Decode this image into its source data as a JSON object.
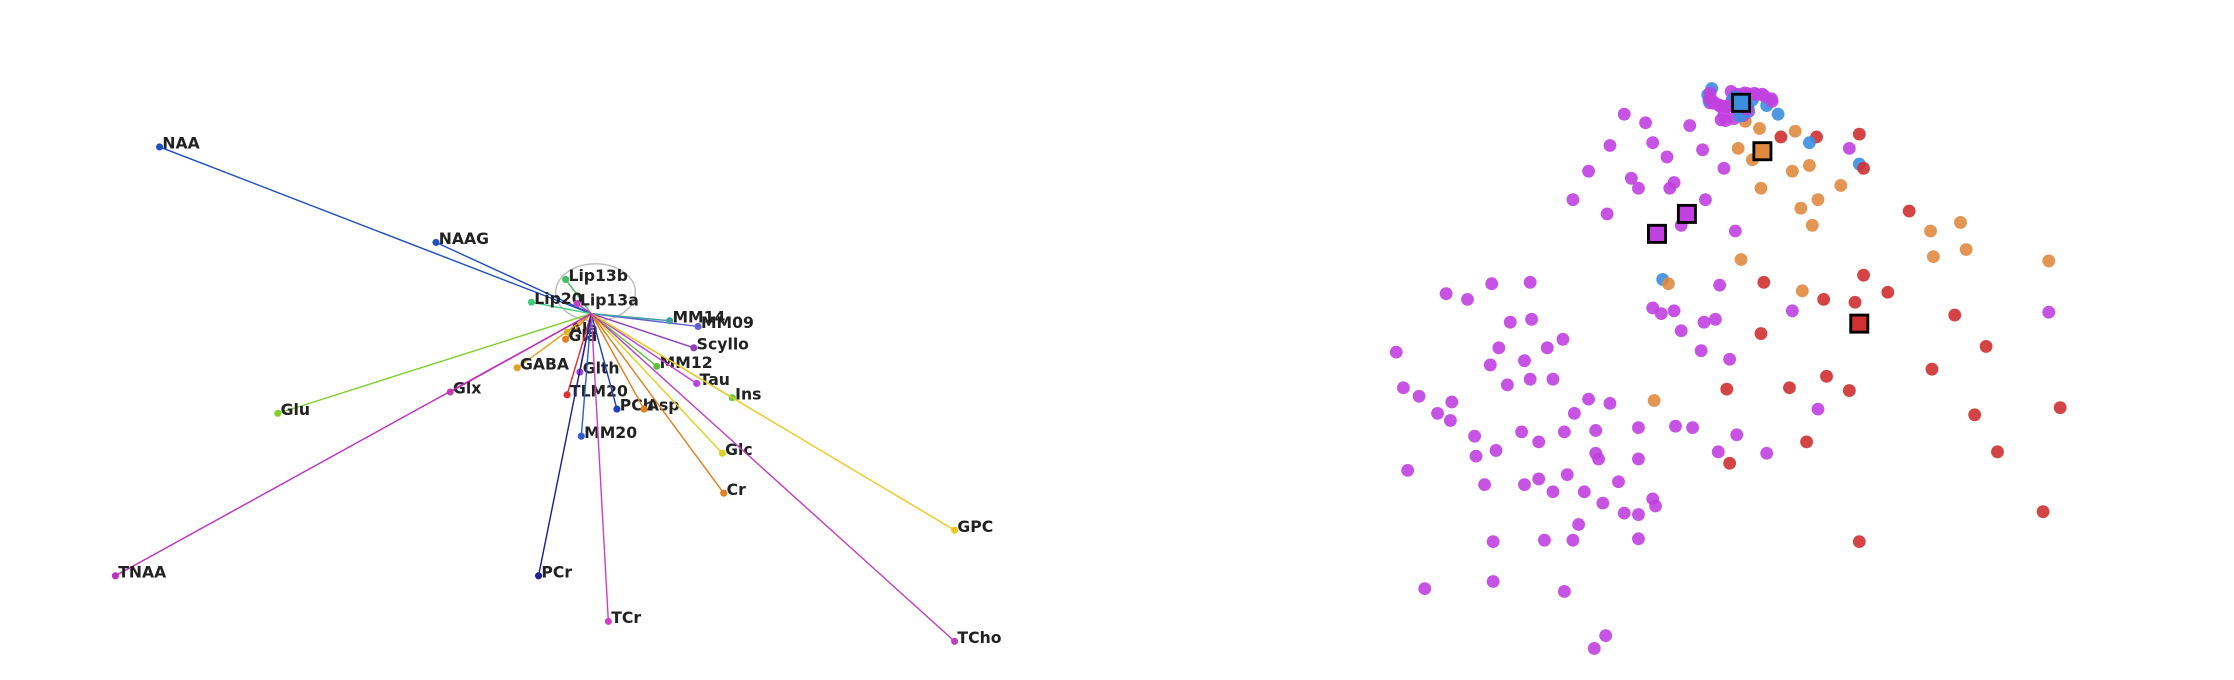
{
  "loadings": {
    "labels": [
      "NAA",
      "NAAG",
      "Lip13b",
      "Lip20",
      "Lip13a",
      "Ala",
      "Gla",
      "MM09",
      "MM14",
      "Scyllo",
      "GABA",
      "Glth",
      "MM12",
      "Tau",
      "Ins",
      "Glx",
      "Glu",
      "TLM20",
      "PCh",
      "Asp",
      "MM20",
      "Glc",
      "Cr",
      "GPC",
      "TNAA",
      "PCr",
      "TCr",
      "TCho"
    ]
  }
}
